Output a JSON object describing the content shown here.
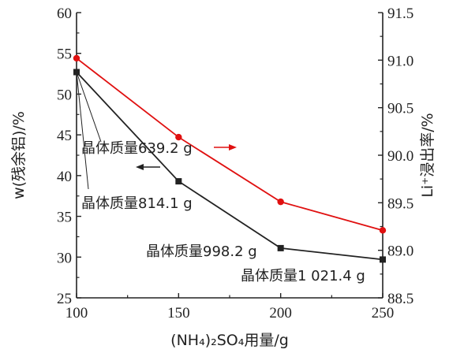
{
  "chart_data": {
    "type": "line",
    "x": [
      100,
      150,
      200,
      250
    ],
    "xlabel": "(NH₄)₂SO₄用量/g",
    "ylabel_left": "w(残余铝)/%",
    "ylabel_right": "Li⁺浸出率/%",
    "xlim": [
      100,
      250
    ],
    "ylim_left": [
      25,
      60
    ],
    "ylim_right": [
      88.5,
      91.5
    ],
    "x_ticks": [
      "100",
      "150",
      "200",
      "250"
    ],
    "y_left_ticks": [
      "25",
      "30",
      "35",
      "40",
      "45",
      "50",
      "55",
      "60"
    ],
    "y_right_ticks": [
      "88.5",
      "89.0",
      "89.5",
      "90.0",
      "90.5",
      "91.0",
      "91.5"
    ],
    "grid": false,
    "series": [
      {
        "axis": "left",
        "color": "#222222",
        "marker": "square",
        "values": [
          52.7,
          39.3,
          31.1,
          29.7
        ]
      },
      {
        "axis": "right",
        "color": "#e01010",
        "marker": "circle",
        "values": [
          91.02,
          90.19,
          89.51,
          89.21
        ]
      }
    ],
    "annotations": [
      "晶体质量639.2 g",
      "晶体质量814.1 g",
      "晶体质量998.2 g",
      "晶体质量1 021.4 g"
    ]
  }
}
